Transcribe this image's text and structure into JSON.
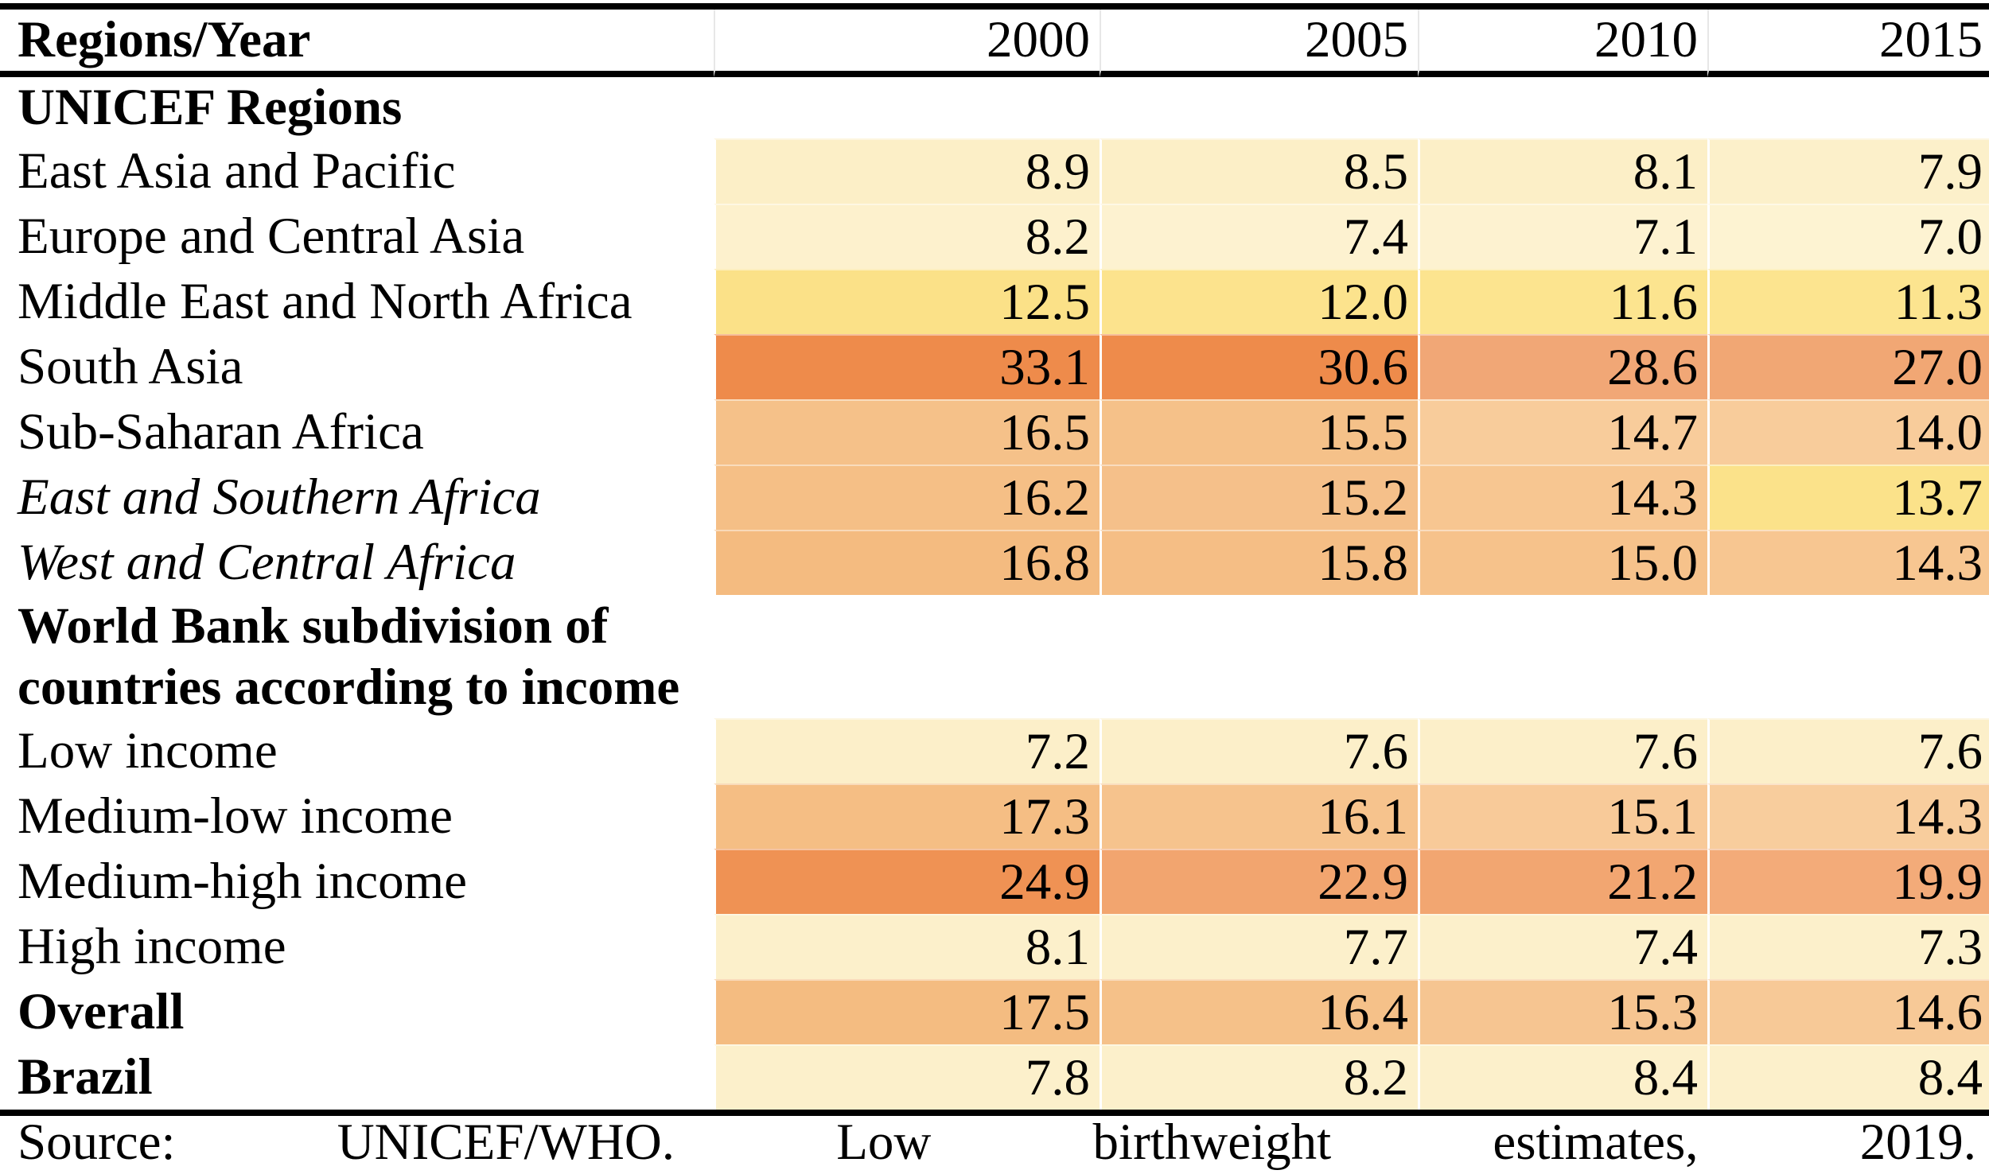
{
  "table": {
    "header": {
      "label": "Regions/Year",
      "years": [
        "2000",
        "2005",
        "2010",
        "2015"
      ]
    },
    "rows": [
      {
        "type": "section",
        "label": "UNICEF Regions"
      },
      {
        "type": "data",
        "label": "East Asia and Pacific",
        "values": [
          "8.9",
          "8.5",
          "8.1",
          "7.9"
        ],
        "colors": [
          "#FCEFC7",
          "#FCEFC7",
          "#FCEFC7",
          "#FCF0CA"
        ]
      },
      {
        "type": "data",
        "label": "Europe and Central Asia",
        "values": [
          "8.2",
          "7.4",
          "7.1",
          "7.0"
        ],
        "colors": [
          "#FDF1CD",
          "#FDF2D0",
          "#FDF2D0",
          "#FDF3D2"
        ]
      },
      {
        "type": "data",
        "label": "Middle East and North Africa",
        "values": [
          "12.5",
          "12.0",
          "11.6",
          "11.3"
        ],
        "colors": [
          "#FBE188",
          "#FCE38D",
          "#FCE48F",
          "#FCE48F"
        ]
      },
      {
        "type": "data",
        "label": "South Asia",
        "values": [
          "33.1",
          "30.6",
          "28.6",
          "27.0"
        ],
        "colors": [
          "#EE8B4B",
          "#EE8B4B",
          "#F1A776",
          "#F1A774"
        ]
      },
      {
        "type": "data",
        "label": "Sub-Saharan Africa",
        "values": [
          "16.5",
          "15.5",
          "14.7",
          "14.0"
        ],
        "colors": [
          "#F5C189",
          "#F5C189",
          "#F8CC9B",
          "#F8CC9B"
        ]
      },
      {
        "type": "data",
        "label": "East and Southern Africa",
        "style": "italic",
        "values": [
          "16.2",
          "15.2",
          "14.3",
          "13.7"
        ],
        "colors": [
          "#F5BF86",
          "#F5C08A",
          "#F7C691",
          "#FBE28A"
        ]
      },
      {
        "type": "data",
        "label": "West and Central Africa",
        "style": "italic",
        "values": [
          "16.8",
          "15.8",
          "15.0",
          "14.3"
        ],
        "colors": [
          "#F4BB80",
          "#F5BE85",
          "#F6C28B",
          "#F7C691"
        ]
      },
      {
        "type": "section",
        "label": "World Bank subdivision of countries according to income"
      },
      {
        "type": "data",
        "label": "Low income",
        "values": [
          "7.2",
          "7.6",
          "7.6",
          "7.6"
        ],
        "colors": [
          "#FCEFC9",
          "#FCEFC9",
          "#FCEFC9",
          "#FCEFC9"
        ]
      },
      {
        "type": "data",
        "label": "Medium-low income",
        "values": [
          "17.3",
          "16.1",
          "15.1",
          "14.3"
        ],
        "colors": [
          "#F5BE84",
          "#F6C38D",
          "#F8CA99",
          "#F8CD9D"
        ]
      },
      {
        "type": "data",
        "label": "Medium-high income",
        "values": [
          "24.9",
          "22.9",
          "21.2",
          "19.9"
        ],
        "colors": [
          "#EF9254",
          "#F2A56F",
          "#F2A671",
          "#F3AB79"
        ]
      },
      {
        "type": "data",
        "label": "High income",
        "values": [
          "8.1",
          "7.7",
          "7.4",
          "7.3"
        ],
        "colors": [
          "#FCF0CB",
          "#FCF0CB",
          "#FCF0CB",
          "#FCF0CB"
        ]
      },
      {
        "type": "data",
        "label": "Overall",
        "style": "bold",
        "values": [
          "17.5",
          "16.4",
          "15.3",
          "14.6"
        ],
        "colors": [
          "#F4BC81",
          "#F5C189",
          "#F6C591",
          "#F7C997"
        ]
      },
      {
        "type": "data",
        "label": "Brazil",
        "style": "bold",
        "values": [
          "7.8",
          "8.2",
          "8.4",
          "8.4"
        ],
        "colors": [
          "#FCF0CB",
          "#FCF0CB",
          "#FCF0CB",
          "#FCF0CB"
        ]
      }
    ],
    "source": {
      "words": [
        "Source:",
        "UNICEF/WHO.",
        "Low",
        "birthweight",
        "estimates,",
        "2019."
      ]
    }
  },
  "chart_data": {
    "type": "table",
    "title": "Low birthweight prevalence (%) by region and year",
    "categories": [
      "2000",
      "2005",
      "2010",
      "2015"
    ],
    "series": [
      {
        "name": "East Asia and Pacific",
        "values": [
          8.9,
          8.5,
          8.1,
          7.9
        ]
      },
      {
        "name": "Europe and Central Asia",
        "values": [
          8.2,
          7.4,
          7.1,
          7.0
        ]
      },
      {
        "name": "Middle East and North Africa",
        "values": [
          12.5,
          12.0,
          11.6,
          11.3
        ]
      },
      {
        "name": "South Asia",
        "values": [
          33.1,
          30.6,
          28.6,
          27.0
        ]
      },
      {
        "name": "Sub-Saharan Africa",
        "values": [
          16.5,
          15.5,
          14.7,
          14.0
        ]
      },
      {
        "name": "East and Southern Africa",
        "values": [
          16.2,
          15.2,
          14.3,
          13.7
        ]
      },
      {
        "name": "West and Central Africa",
        "values": [
          16.8,
          15.8,
          15.0,
          14.3
        ]
      },
      {
        "name": "Low income",
        "values": [
          7.2,
          7.6,
          7.6,
          7.6
        ]
      },
      {
        "name": "Medium-low income",
        "values": [
          17.3,
          16.1,
          15.1,
          14.3
        ]
      },
      {
        "name": "Medium-high income",
        "values": [
          24.9,
          22.9,
          21.2,
          19.9
        ]
      },
      {
        "name": "High income",
        "values": [
          8.1,
          7.7,
          7.4,
          7.3
        ]
      },
      {
        "name": "Overall",
        "values": [
          17.5,
          16.4,
          15.3,
          14.6
        ]
      },
      {
        "name": "Brazil",
        "values": [
          7.8,
          8.2,
          8.4,
          8.4
        ]
      }
    ],
    "heatmap_palette": {
      "low": "#FDF3D2",
      "mid_yellow": "#FCE48F",
      "high": "#EE8B4B"
    }
  }
}
